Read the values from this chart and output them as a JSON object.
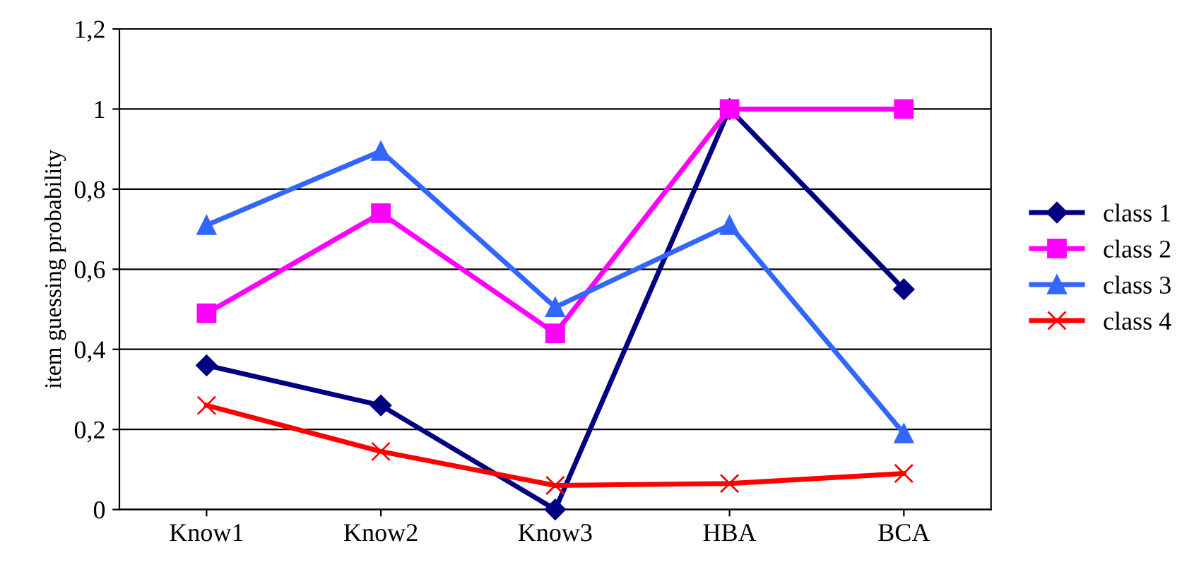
{
  "chart_data": {
    "type": "line",
    "ylabel": "item guessing probability",
    "categories": [
      "Know1",
      "Know2",
      "Know3",
      "HBA",
      "BCA"
    ],
    "series": [
      {
        "name": "class 1",
        "color": "#000080",
        "marker": "diamond",
        "values": [
          0.36,
          0.26,
          0.0,
          1.0,
          0.55
        ]
      },
      {
        "name": "class 2",
        "color": "#ff00ff",
        "marker": "square",
        "values": [
          0.49,
          0.74,
          0.44,
          1.0,
          1.0
        ]
      },
      {
        "name": "class 3",
        "color": "#3366ff",
        "marker": "triangle",
        "values": [
          0.71,
          0.895,
          0.505,
          0.71,
          0.19
        ]
      },
      {
        "name": "class 4",
        "color": "#ff0000",
        "marker": "cross",
        "values": [
          0.26,
          0.145,
          0.06,
          0.065,
          0.09
        ]
      }
    ],
    "ylim": [
      0,
      1.2
    ],
    "yticks": [
      0,
      {
        "value": 0.2,
        "label": "0,2"
      },
      {
        "value": 0.4,
        "label": "0,4"
      },
      {
        "value": 0.6,
        "label": "0,6"
      },
      {
        "value": 0.8,
        "label": "0,8"
      },
      1,
      {
        "value": 1.2,
        "label": "1,2"
      }
    ],
    "grid": "y",
    "legend": "right"
  }
}
